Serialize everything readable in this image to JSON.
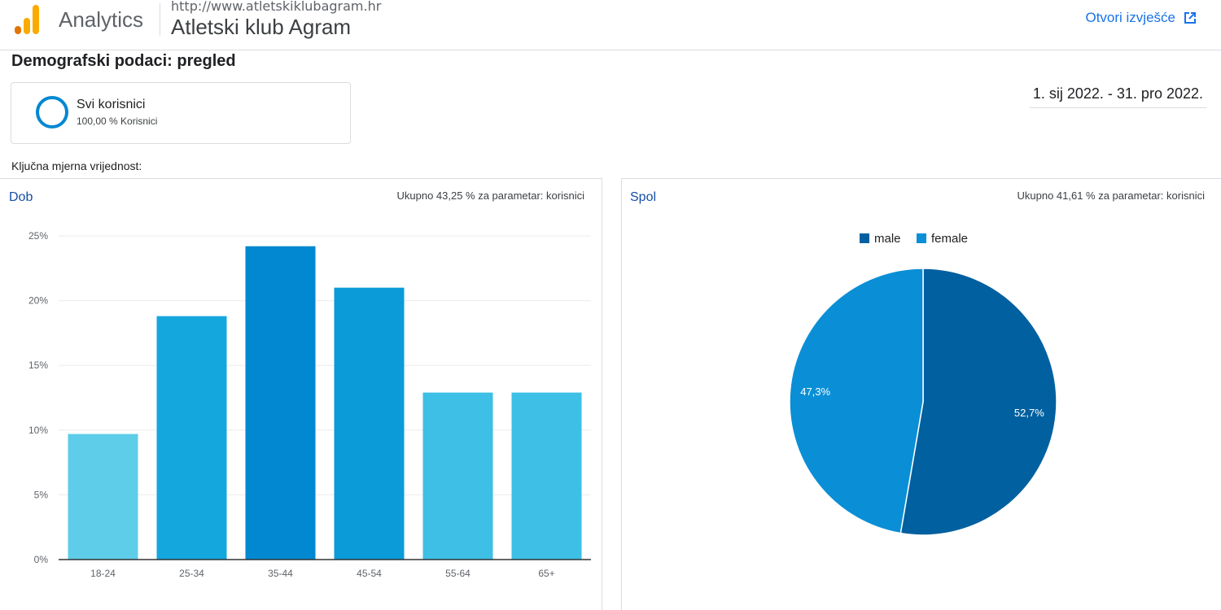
{
  "header": {
    "brand": "Analytics",
    "site_url": "http://www.atletskiklubagram.hr",
    "site_name": "Atletski klub Agram",
    "open_report": "Otvori izvješće",
    "logo_icon": "analytics-logo-icon",
    "open_icon": "external-link-icon"
  },
  "page": {
    "title": "Demografski podaci: pregled",
    "date_range": "1. sij 2022. - 31. pro 2022.",
    "metric_label": "Ključna mjerna vrijednost:"
  },
  "segment": {
    "name": "Svi korisnici",
    "sub": "100,00 % Korisnici"
  },
  "age_panel": {
    "title": "Dob",
    "total": "Ukupno 43,25 % za parametar: korisnici"
  },
  "gender_panel": {
    "title": "Spol",
    "total": "Ukupno 41,61 % za parametar: korisnici"
  },
  "colors": {
    "accent": "#1a73e8",
    "bars": [
      "#5ecde9",
      "#14a7de",
      "#0288d1",
      "#0b9bd9",
      "#3dbfe6",
      "#3dbfe6"
    ],
    "male": "#01609f",
    "female": "#0a8fd6"
  },
  "chart_data": [
    {
      "type": "bar",
      "categories": [
        "18-24",
        "25-34",
        "35-44",
        "45-54",
        "55-64",
        "65+"
      ],
      "values": [
        9.7,
        18.8,
        24.2,
        21.0,
        12.9,
        12.9
      ],
      "ylim": [
        0,
        25
      ],
      "yticks": [
        "0%",
        "5%",
        "10%",
        "15%",
        "20%",
        "25%"
      ],
      "grid": true
    },
    {
      "type": "pie",
      "labels": [
        "male",
        "female"
      ],
      "values": [
        52.7,
        47.3
      ],
      "value_labels": [
        "52,7%",
        "47,3%"
      ],
      "legend": "top"
    }
  ]
}
